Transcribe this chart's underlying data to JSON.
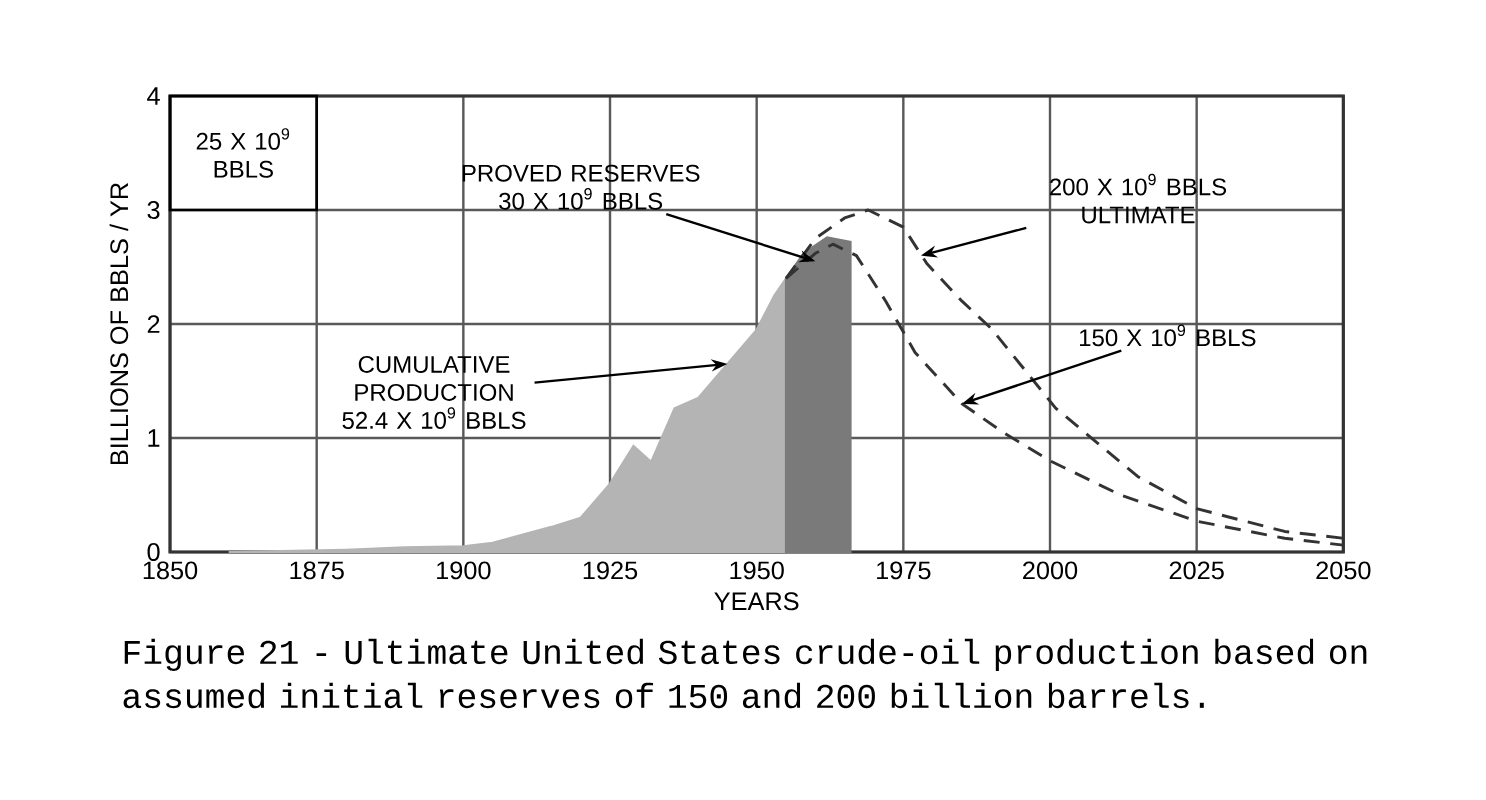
{
  "chart_data": {
    "type": "area",
    "xlabel": "YEARS",
    "ylabel": "BILLIONS OF BBLS / YR",
    "xlim": [
      1850,
      2050
    ],
    "xticks": [
      1850,
      1875,
      1900,
      1925,
      1950,
      1975,
      2000,
      2025,
      2050
    ],
    "ylim": [
      0,
      4
    ],
    "yticks": [
      0,
      1,
      2,
      3,
      4
    ],
    "grid": true,
    "series": [
      {
        "color": "#b4b4b4",
        "x": [
          1860,
          1870,
          1880,
          1890,
          1900,
          1905,
          1910,
          1915,
          1920,
          1925,
          1929,
          1932,
          1936,
          1940,
          1945,
          1950,
          1953,
          1955
        ],
        "values": [
          0,
          0.01,
          0.02,
          0.04,
          0.05,
          0.08,
          0.15,
          0.22,
          0.3,
          0.6,
          0.93,
          0.79,
          1.26,
          1.35,
          1.65,
          1.95,
          2.25,
          2.4
        ]
      },
      {
        "color": "#7a7a7a",
        "x": [
          1955,
          1958,
          1962,
          1966
        ],
        "values": [
          2.4,
          2.62,
          2.76,
          2.72
        ]
      },
      {
        "type": "line",
        "line_style": "dashed",
        "color": "#333333",
        "x": [
          1955,
          1960,
          1965,
          1969,
          1975,
          1979,
          1985,
          1990,
          2001,
          2015,
          2025,
          2040,
          2050
        ],
        "values": [
          2.4,
          2.75,
          2.93,
          3.0,
          2.85,
          2.53,
          2.2,
          1.96,
          1.26,
          0.66,
          0.38,
          0.18,
          0.12
        ]
      },
      {
        "type": "line",
        "line_style": "dashed",
        "color": "#333333",
        "x": [
          1955,
          1960,
          1963,
          1967,
          1972,
          1977,
          1985,
          1992,
          2000,
          2012,
          2025,
          2040,
          2050
        ],
        "values": [
          2.4,
          2.62,
          2.7,
          2.6,
          2.2,
          1.75,
          1.3,
          1.05,
          0.8,
          0.5,
          0.27,
          0.12,
          0.06
        ]
      }
    ],
    "annotations": [
      "25 X 10$^{9}$ BBLS",
      {
        "text": "PROVED RESERVES 30 X 10$^{9}$ BBLS",
        "x": 1960,
        "y": 2.55
      },
      {
        "text": "200 X 10$^{9}$ BBLS ULTIMATE",
        "x": 1978,
        "y": 2.6
      },
      {
        "text": "150 X 10$^{9}$ BBLS",
        "x": 1985,
        "y": 1.3
      },
      {
        "text": "CUMULATIVE PRODUCTION 52.4 X 10$^{9}$ BBLS",
        "x": 1945,
        "y": 1.65
      },
      "Figure 21 - Ultimate United States crude-oil production based on assumed initial reserves of 150 and 200 billion barrels."
    ]
  }
}
